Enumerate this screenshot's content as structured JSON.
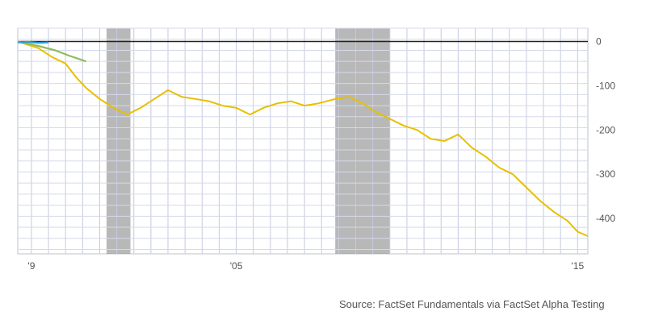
{
  "chart_data": {
    "type": "line",
    "title": "",
    "xlabel": "",
    "ylabel": "",
    "x_range": [
      1998.6,
      2015.3
    ],
    "ylim": [
      -480,
      30
    ],
    "y_ticks": [
      0,
      -100,
      -200,
      -300,
      -400
    ],
    "y_tick_labels": [
      "0",
      "-100",
      "-200",
      "-300",
      "-400"
    ],
    "x_tick_labels": [
      {
        "x": 1999,
        "label": "'9"
      },
      {
        "x": 2005,
        "label": "'05"
      },
      {
        "x": 2015,
        "label": "'15"
      }
    ],
    "grid": true,
    "reference_line": 0,
    "recessions": [
      [
        2001.2,
        2001.9
      ],
      [
        2007.9,
        2009.5
      ]
    ],
    "series": [
      {
        "color": "#e6c000",
        "x": [
          1998.6,
          1999.2,
          1999.6,
          2000.0,
          2000.3,
          2000.6,
          2001.0,
          2001.4,
          2001.8,
          2002.2,
          2002.6,
          2003.0,
          2003.4,
          2003.8,
          2004.2,
          2004.6,
          2005.0,
          2005.4,
          2005.8,
          2006.2,
          2006.6,
          2007.0,
          2007.4,
          2007.9,
          2008.3,
          2008.7,
          2009.1,
          2009.5,
          2009.9,
          2010.3,
          2010.7,
          2011.1,
          2011.5,
          2011.9,
          2012.3,
          2012.7,
          2013.1,
          2013.5,
          2013.9,
          2014.3,
          2014.7,
          2015.0,
          2015.3
        ],
        "values": [
          0,
          -15,
          -35,
          -50,
          -80,
          -105,
          -130,
          -150,
          -165,
          -150,
          -130,
          -110,
          -125,
          -130,
          -135,
          -145,
          -150,
          -165,
          -150,
          -140,
          -135,
          -145,
          -140,
          -130,
          -125,
          -140,
          -160,
          -175,
          -190,
          -200,
          -220,
          -225,
          -210,
          -240,
          -260,
          -285,
          -300,
          -330,
          -360,
          -385,
          -405,
          -430,
          -440
        ]
      },
      {
        "color": "#8fbc5a",
        "x": [
          1998.6,
          1999.2,
          1999.7,
          2000.1,
          2000.6
        ],
        "values": [
          0,
          -10,
          -20,
          -32,
          -45
        ]
      },
      {
        "color": "#2e9bd6",
        "x": [
          1998.6,
          1998.9,
          1999.2,
          1999.5
        ],
        "values": [
          -2,
          -1,
          -3,
          -2
        ]
      }
    ]
  },
  "footer": {
    "source": "Source: FactSet Fundamentals via FactSet Alpha Testing"
  }
}
